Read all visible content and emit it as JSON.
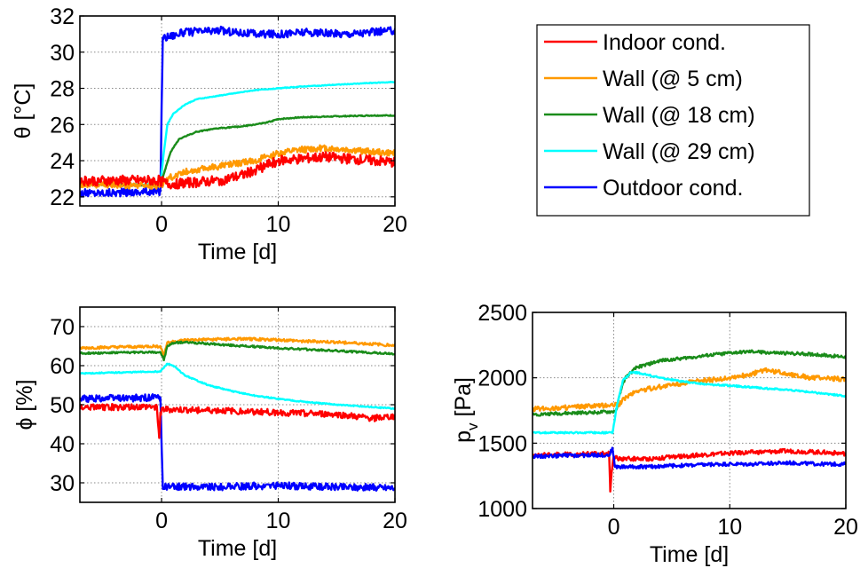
{
  "chart_data": [
    {
      "type": "line",
      "id": "temp",
      "xlabel": "Time [d]",
      "ylabel": "θ [°C]",
      "xlim": [
        -7,
        20
      ],
      "ylim": [
        21.5,
        32
      ],
      "xticks": [
        0,
        10,
        20
      ],
      "yticks": [
        22,
        24,
        26,
        28,
        30,
        32
      ],
      "grid": true,
      "series": [
        {
          "name": "Outdoor cond.",
          "key": "outdoor",
          "x": [
            -7,
            -0.1,
            0.1,
            2,
            5,
            8,
            10,
            12,
            15,
            18,
            20
          ],
          "y": [
            22.2,
            22.3,
            30.8,
            31.1,
            31.2,
            31.0,
            31.0,
            31.1,
            31.0,
            31.1,
            31.2
          ]
        },
        {
          "name": "Wall (@ 29 cm)",
          "key": "wall29",
          "x": [
            -7,
            -0.1,
            0.2,
            0.5,
            1,
            2,
            3,
            5,
            8,
            10,
            12,
            15,
            18,
            20
          ],
          "y": [
            22.7,
            22.7,
            24.5,
            26.0,
            26.6,
            27.1,
            27.4,
            27.6,
            27.9,
            28.0,
            28.1,
            28.2,
            28.3,
            28.35
          ]
        },
        {
          "name": "Wall (@ 18 cm)",
          "key": "wall18",
          "x": [
            -7,
            -0.1,
            0.3,
            0.8,
            1.5,
            3,
            5,
            7,
            9,
            10,
            12,
            15,
            18,
            20
          ],
          "y": [
            22.7,
            22.6,
            23.5,
            24.5,
            25.2,
            25.6,
            25.8,
            25.9,
            26.1,
            26.3,
            26.4,
            26.45,
            26.5,
            26.5
          ]
        },
        {
          "name": "Wall (@ 5 cm)",
          "key": "wall5",
          "x": [
            -7,
            -0.1,
            0.5,
            2,
            4,
            6,
            8,
            10,
            12,
            14,
            16,
            18,
            20
          ],
          "y": [
            22.7,
            22.6,
            23.0,
            23.4,
            23.6,
            23.8,
            24.0,
            24.4,
            24.6,
            24.7,
            24.6,
            24.5,
            24.4
          ]
        },
        {
          "name": "Indoor cond.",
          "key": "indoor",
          "x": [
            -7,
            -0.1,
            0.5,
            3,
            5,
            7,
            8,
            10,
            12,
            14,
            16,
            18,
            20
          ],
          "y": [
            22.9,
            22.9,
            22.7,
            22.8,
            22.9,
            23.2,
            23.5,
            24.0,
            24.1,
            24.2,
            24.1,
            24.0,
            23.9
          ]
        }
      ]
    },
    {
      "type": "line",
      "id": "rh",
      "xlabel": "Time [d]",
      "ylabel": "ϕ [%]",
      "xlim": [
        -7,
        20
      ],
      "ylim": [
        25,
        75
      ],
      "xticks": [
        0,
        10,
        20
      ],
      "yticks": [
        30,
        40,
        50,
        60,
        70
      ],
      "grid": true,
      "series": [
        {
          "name": "Wall (@ 5 cm)",
          "key": "wall5",
          "x": [
            -7,
            -0.1,
            0.2,
            0.5,
            2,
            5,
            8,
            10,
            12,
            15,
            20
          ],
          "y": [
            64.5,
            65.0,
            62.5,
            66.0,
            66.5,
            66.8,
            66.8,
            66.6,
            66.3,
            66.0,
            65.2
          ]
        },
        {
          "name": "Wall (@ 18 cm)",
          "key": "wall18",
          "x": [
            -7,
            -0.1,
            0.2,
            0.5,
            1,
            2,
            5,
            10,
            15,
            20
          ],
          "y": [
            63.2,
            63.5,
            61.5,
            65.0,
            65.8,
            66.0,
            65.4,
            64.5,
            63.8,
            63.0
          ]
        },
        {
          "name": "Wall (@ 29 cm)",
          "key": "wall29",
          "x": [
            -7,
            -0.1,
            0.5,
            1,
            2,
            4,
            6,
            8,
            10,
            13,
            16,
            20
          ],
          "y": [
            58.0,
            58.5,
            60.5,
            60.0,
            57.5,
            55.0,
            53.5,
            52.3,
            51.5,
            50.5,
            49.8,
            49.0
          ]
        },
        {
          "name": "Outdoor cond.",
          "key": "outdoor",
          "x": [
            -7,
            -0.1,
            0.1,
            5,
            10,
            15,
            20
          ],
          "y": [
            51.5,
            51.8,
            29.0,
            29.0,
            29.3,
            29.0,
            28.8
          ]
        },
        {
          "name": "Indoor cond.",
          "key": "indoor",
          "x": [
            -7,
            -0.4,
            -0.2,
            -0.1,
            0.1,
            5,
            10,
            15,
            18,
            20
          ],
          "y": [
            49.3,
            49.5,
            41.5,
            48.0,
            48.8,
            48.5,
            48.0,
            47.5,
            46.5,
            47.0
          ]
        }
      ]
    },
    {
      "type": "line",
      "id": "pv",
      "xlabel": "Time [d]",
      "ylabel": "p_v [Pa]",
      "ylabel_main": "p",
      "ylabel_sub": "v",
      "ylabel_rest": " [Pa]",
      "xlim": [
        -7,
        20
      ],
      "ylim": [
        1000,
        2500
      ],
      "xticks": [
        0,
        10,
        20
      ],
      "yticks": [
        1000,
        1500,
        2000,
        2500
      ],
      "grid": true,
      "series": [
        {
          "name": "Wall (@ 18 cm)",
          "key": "wall18",
          "x": [
            -7,
            -0.1,
            0.2,
            0.6,
            1,
            2,
            4,
            6,
            8,
            10,
            12,
            14,
            17,
            20
          ],
          "y": [
            1720,
            1740,
            1750,
            1900,
            2000,
            2080,
            2130,
            2150,
            2170,
            2190,
            2200,
            2190,
            2180,
            2160
          ]
        },
        {
          "name": "Wall (@ 5 cm)",
          "key": "wall5",
          "x": [
            -7,
            -0.1,
            0.5,
            1,
            2,
            4,
            6,
            8,
            10,
            12,
            13,
            15,
            17,
            20
          ],
          "y": [
            1760,
            1790,
            1800,
            1850,
            1900,
            1930,
            1960,
            1980,
            2000,
            2030,
            2060,
            2030,
            2000,
            1990
          ]
        },
        {
          "name": "Wall (@ 29 cm)",
          "key": "wall29",
          "x": [
            -7,
            -0.1,
            0.3,
            0.8,
            1.5,
            2,
            4,
            6,
            8,
            10,
            13,
            16,
            20
          ],
          "y": [
            1580,
            1580,
            1800,
            1980,
            2040,
            2040,
            2000,
            1970,
            1950,
            1940,
            1920,
            1900,
            1860
          ]
        },
        {
          "name": "Indoor cond.",
          "key": "indoor",
          "x": [
            -7,
            -0.4,
            -0.3,
            -0.15,
            0,
            0.5,
            3,
            6,
            9,
            12,
            15,
            18,
            20
          ],
          "y": [
            1410,
            1420,
            1130,
            1300,
            1400,
            1380,
            1380,
            1400,
            1420,
            1430,
            1440,
            1430,
            1420
          ]
        },
        {
          "name": "Outdoor cond.",
          "key": "outdoor",
          "x": [
            -7,
            -0.4,
            -0.1,
            0.1,
            3,
            6,
            9,
            12,
            15,
            18,
            20
          ],
          "y": [
            1400,
            1410,
            1460,
            1320,
            1320,
            1330,
            1340,
            1340,
            1350,
            1340,
            1340
          ]
        }
      ]
    }
  ],
  "legend": {
    "placement": "top-right",
    "entries": [
      {
        "label": "Indoor cond.",
        "key": "indoor"
      },
      {
        "label": "Wall (@ 5 cm)",
        "key": "wall5"
      },
      {
        "label": "Wall (@ 18 cm)",
        "key": "wall18"
      },
      {
        "label": "Wall (@ 29 cm)",
        "key": "wall29"
      },
      {
        "label": "Outdoor cond.",
        "key": "outdoor"
      }
    ]
  },
  "colors": {
    "indoor": "#ff0000",
    "wall5": "#ff9900",
    "wall18": "#1a8c1a",
    "wall29": "#00ffff",
    "outdoor": "#0000ff"
  }
}
